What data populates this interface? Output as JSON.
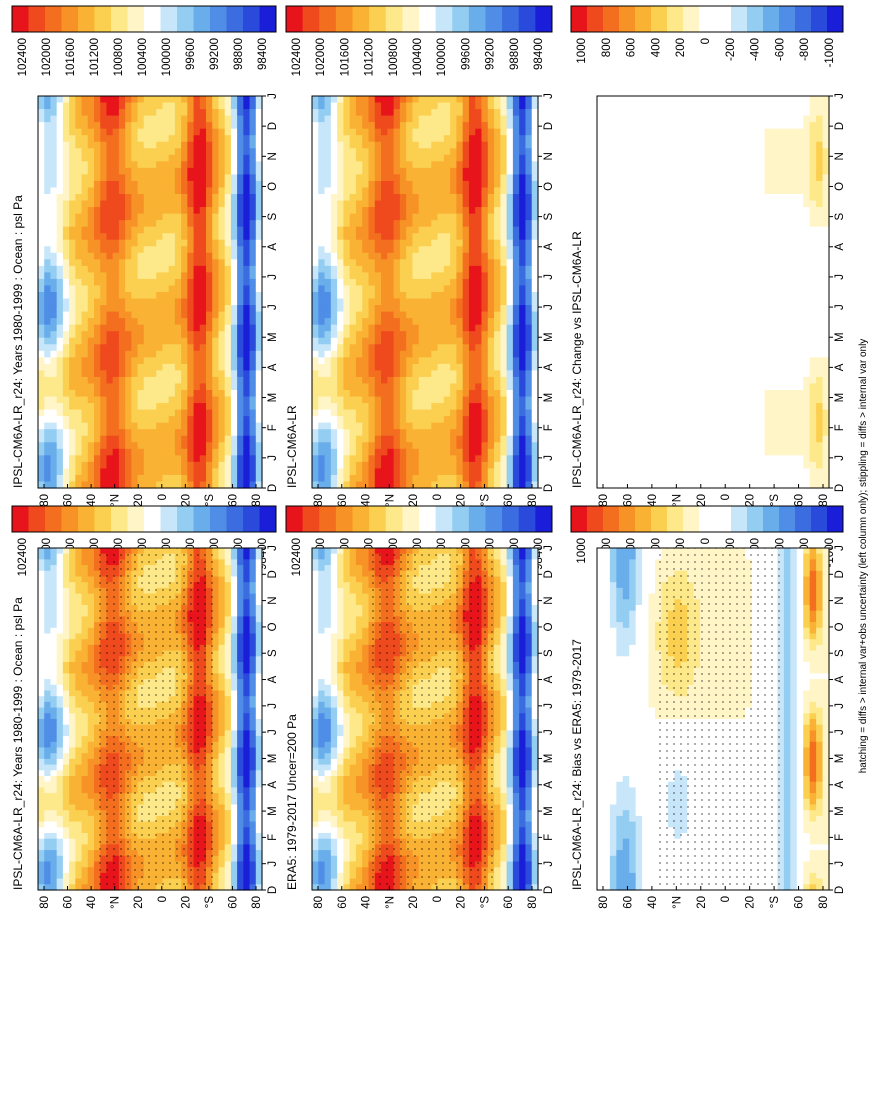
{
  "footnote": "hatching = diffs > internal var+obs uncertainty (left column only); stippling = diffs > internal var only",
  "chart_data": [
    {
      "type": "heatmap",
      "title": "IPSL-CM6A-LR_r24: Years 1980-1999 : Ocean : psl Pa",
      "kind": "abs",
      "stipple": true,
      "x": [
        "D",
        "J",
        "F",
        "M",
        "A",
        "M",
        "J",
        "J",
        "A",
        "S",
        "O",
        "N",
        "D",
        "J"
      ],
      "y": [
        "80",
        "60",
        "40",
        "°N",
        "20",
        "0",
        "20",
        "°S",
        "60",
        "80"
      ],
      "legend": [
        "102400",
        "102000",
        "101600",
        "101200",
        "100800",
        "100400",
        "100000",
        "99600",
        "99200",
        "98800",
        "98400"
      ],
      "zlim": [
        98400,
        102400
      ]
    },
    {
      "type": "heatmap",
      "title": "IPSL-CM6A-LR_r24: Years 1980-1999 : Ocean : psl Pa",
      "kind": "abs",
      "stipple": false,
      "x": [
        "D",
        "J",
        "F",
        "M",
        "A",
        "M",
        "J",
        "J",
        "A",
        "S",
        "O",
        "N",
        "D",
        "J"
      ],
      "y": [
        "80",
        "60",
        "40",
        "°N",
        "20",
        "0",
        "20",
        "°S",
        "60",
        "80"
      ],
      "legend": [
        "102400",
        "102000",
        "101600",
        "101200",
        "100800",
        "100400",
        "100000",
        "99600",
        "99200",
        "98800",
        "98400"
      ],
      "zlim": [
        98400,
        102400
      ]
    },
    {
      "type": "heatmap",
      "title": "ERA5: 1979-2017 Uncer=200 Pa",
      "kind": "abs",
      "stipple": true,
      "x": [
        "D",
        "J",
        "F",
        "M",
        "A",
        "M",
        "J",
        "J",
        "A",
        "S",
        "O",
        "N",
        "D",
        "J"
      ],
      "y": [
        "80",
        "60",
        "40",
        "°N",
        "20",
        "0",
        "20",
        "°S",
        "60",
        "80"
      ],
      "legend": [
        "102400",
        "102000",
        "101600",
        "101200",
        "100800",
        "100400",
        "100000",
        "99600",
        "99200",
        "98800",
        "98400"
      ],
      "zlim": [
        98400,
        102400
      ]
    },
    {
      "type": "heatmap",
      "title": "IPSL-CM6A-LR",
      "kind": "abs",
      "stipple": false,
      "x": [
        "D",
        "J",
        "F",
        "M",
        "A",
        "M",
        "J",
        "J",
        "A",
        "S",
        "O",
        "N",
        "D",
        "J"
      ],
      "y": [
        "80",
        "60",
        "40",
        "°N",
        "20",
        "0",
        "20",
        "°S",
        "60",
        "80"
      ],
      "legend": [
        "102400",
        "102000",
        "101600",
        "101200",
        "100800",
        "100400",
        "100000",
        "99600",
        "99200",
        "98800",
        "98400"
      ],
      "zlim": [
        98400,
        102400
      ]
    },
    {
      "type": "heatmap",
      "title": "IPSL-CM6A-LR_r24: Bias vs ERA5: 1979-2017",
      "kind": "bias",
      "stipple": true,
      "x": [
        "D",
        "J",
        "F",
        "M",
        "A",
        "M",
        "J",
        "J",
        "A",
        "S",
        "O",
        "N",
        "D",
        "J"
      ],
      "y": [
        "80",
        "60",
        "40",
        "°N",
        "20",
        "0",
        "20",
        "°S",
        "60",
        "80"
      ],
      "legend": [
        "1000",
        "800",
        "600",
        "400",
        "200",
        "0",
        "-200",
        "-400",
        "-600",
        "-800",
        "-1000"
      ],
      "zlim": [
        -1000,
        1000
      ]
    },
    {
      "type": "heatmap",
      "title": "IPSL-CM6A-LR_r24: Change vs IPSL-CM6A-LR",
      "kind": "change",
      "stipple": false,
      "x": [
        "D",
        "J",
        "F",
        "M",
        "A",
        "M",
        "J",
        "J",
        "A",
        "S",
        "O",
        "N",
        "D",
        "J"
      ],
      "y": [
        "80",
        "60",
        "40",
        "°N",
        "20",
        "0",
        "20",
        "°S",
        "60",
        "80"
      ],
      "legend": [
        "1000",
        "800",
        "600",
        "400",
        "200",
        "0",
        "-200",
        "-400",
        "-600",
        "-800",
        "-1000"
      ],
      "zlim": [
        -1000,
        1000
      ]
    }
  ]
}
